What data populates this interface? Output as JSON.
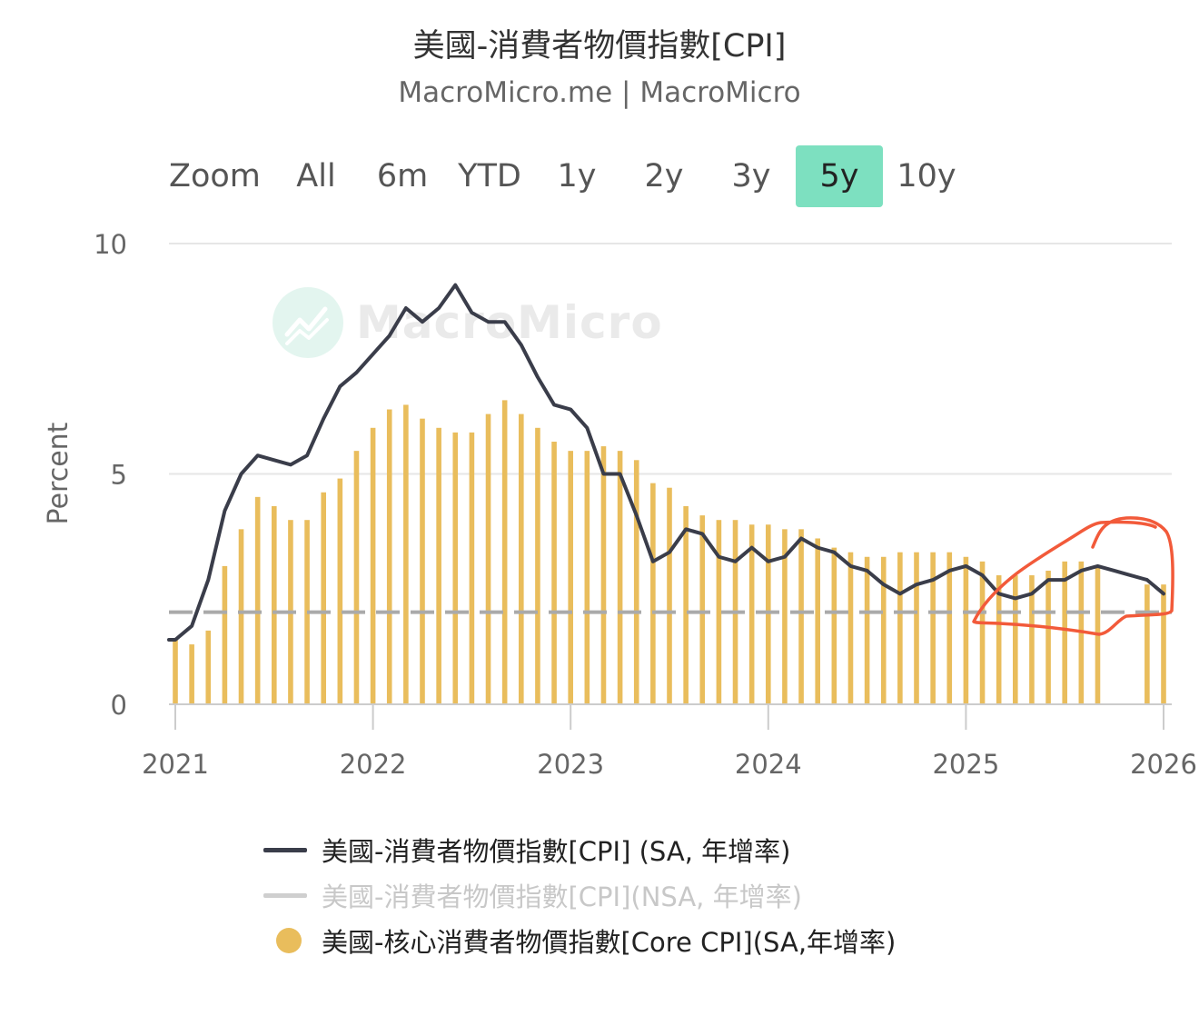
{
  "header": {
    "title": "美國-消費者物價指數[CPI]",
    "subtitle": "MacroMicro.me | MacroMicro"
  },
  "zoom": {
    "label": "Zoom",
    "buttons": [
      "All",
      "6m",
      "YTD",
      "1y",
      "2y",
      "3y",
      "5y",
      "10y"
    ],
    "active": "5y"
  },
  "watermark": {
    "text": "MacroMicro"
  },
  "colors": {
    "cpi_line": "#3a3d4a",
    "core_bar": "#e9bd5c",
    "reference_line": "#aaaaaa",
    "grid": "#e6e6e6",
    "active_zoom": "#7de0c0",
    "annotation": "#f25a3a"
  },
  "legend": {
    "items": [
      {
        "label": "美國-消費者物價指數[CPI] (SA, 年增率)",
        "marker": "line",
        "visible": true
      },
      {
        "label": "美國-消費者物價指數[CPI](NSA, 年增率)",
        "marker": "line",
        "visible": false
      },
      {
        "label": "美國-核心消費者物價指數[Core CPI](SA,年增率)",
        "marker": "dot",
        "visible": true
      }
    ]
  },
  "chart_data": {
    "type": "bar",
    "ylabel": "Percent",
    "ylim": [
      0,
      10
    ],
    "yticks": [
      0,
      5,
      10
    ],
    "xticks": [
      "2021",
      "2022",
      "2023",
      "2024",
      "2025",
      "2026"
    ],
    "x_start": "2021-01",
    "x_end": "2026-01",
    "grid": true,
    "reference_line": {
      "value": 2,
      "style": "dashed"
    },
    "series": [
      {
        "name": "美國-消費者物價指數[CPI] (SA, 年增率)",
        "type": "line",
        "start": "2021-01",
        "values": [
          1.4,
          1.7,
          2.7,
          4.2,
          5.0,
          5.4,
          5.3,
          5.2,
          5.4,
          6.2,
          6.9,
          7.2,
          7.6,
          8.0,
          8.6,
          8.3,
          8.6,
          9.1,
          8.5,
          8.3,
          8.3,
          7.8,
          7.1,
          6.5,
          6.4,
          6.0,
          5.0,
          5.0,
          4.1,
          3.1,
          3.3,
          3.8,
          3.7,
          3.2,
          3.1,
          3.4,
          3.1,
          3.2,
          3.6,
          3.4,
          3.3,
          3.0,
          2.9,
          2.6,
          2.4,
          2.6,
          2.7,
          2.9,
          3.0,
          2.8,
          2.4,
          2.3,
          2.4,
          2.7,
          2.7,
          2.9,
          3.0,
          2.9,
          2.8,
          2.7,
          2.4
        ]
      },
      {
        "name": "美國-核心消費者物價指數[Core CPI](SA,年增率)",
        "type": "bar",
        "start": "2021-01",
        "values": [
          1.4,
          1.3,
          1.6,
          3.0,
          3.8,
          4.5,
          4.3,
          4.0,
          4.0,
          4.6,
          4.9,
          5.5,
          6.0,
          6.4,
          6.5,
          6.2,
          6.0,
          5.9,
          5.9,
          6.3,
          6.6,
          6.3,
          6.0,
          5.7,
          5.5,
          5.5,
          5.6,
          5.5,
          5.3,
          4.8,
          4.7,
          4.3,
          4.1,
          4.0,
          4.0,
          3.9,
          3.9,
          3.8,
          3.8,
          3.6,
          3.4,
          3.3,
          3.2,
          3.2,
          3.3,
          3.3,
          3.3,
          3.3,
          3.2,
          3.1,
          2.8,
          2.8,
          2.8,
          2.9,
          3.1,
          3.1,
          3.0,
          null,
          null,
          2.6,
          2.6
        ]
      }
    ]
  }
}
